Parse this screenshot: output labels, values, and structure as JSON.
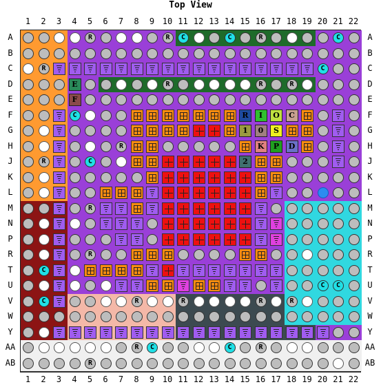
{
  "title": "Top View",
  "columns": [
    "1",
    "2",
    "3",
    "4",
    "5",
    "6",
    "7",
    "8",
    "9",
    "10",
    "11",
    "12",
    "13",
    "14",
    "15",
    "16",
    "17",
    "18",
    "19",
    "20",
    "21",
    "22"
  ],
  "rows": [
    "A",
    "B",
    "C",
    "D",
    "E",
    "F",
    "G",
    "H",
    "J",
    "K",
    "L",
    "M",
    "N",
    "P",
    "R",
    "T",
    "U",
    "V",
    "W",
    "Y",
    "AA",
    "AB"
  ],
  "legend_colors": {
    "grey_ball": "#bdbdbd",
    "white_ball": "#ffffff",
    "magenta_ball": "#e61ee6",
    "cyan_ball": "#20e0e6",
    "blue_ball": "#2b8cf0",
    "purple_square": "#a05cf0",
    "orange_square": "#ff8c10",
    "red_square": "#ee1010",
    "magenta_square": "#e040e0"
  },
  "region_colors": {
    "orange": "#ff9a30",
    "purple": "#9a3fd8",
    "green": "#1e6b2a",
    "darkred": "#8c1414",
    "cyan": "#30d8e0",
    "pink": "#f4b8a8",
    "slate": "#3c4a50",
    "white": "#f0f0f0"
  },
  "grid_map": [
    "ggwwRgwwgRCwgCgRgwggCg",
    "gggggggggggggggggggggg",
    "wRpppppppppppppppppCgg",
    "gggpggwgwRgwwwwRgRwggg",
    "gggpgggggggggggggggggg",
    "ggpCwggOOOOOOOOOOOOgpg",
    "gwpggggOOOOXXOOOOOOgpg",
    "gwpgwgROOgggggOOOOOgpg",
    "gRpgCgwOOXXXXXXOOgggpg",
    "gwpgggggOXXXXXXOOggggg",
    "gwpggOOOpXXXXXXOpggBgg",
    "ggpgRppOpXXXXXXpgggggg",
    "gwpwgpppgXXXXXXpMggggg",
    "gwpgggppgXXXXXXpMggggg",
    "gwpgRggOOOggggOOggwggg",
    "gCpwOOOOpXpppppppggggg",
    "gwpwgwppOOMOOppgpggCCg",
    "gCpggwwRwwRwwwwRwRwggg",
    "gggggggggggggggggggggg",
    "gwppppppppppppppppppgg",
    "gwwwwwgRCggwwCgRgwwggg",
    "ggggRgggggggggggggggwg"
  ],
  "ball_labels": {
    "R": "R",
    "C": "C"
  },
  "special_pins": [
    {
      "row": "D",
      "col": "4",
      "label": "E",
      "color": "#2a8a5a"
    },
    {
      "row": "E",
      "col": "4",
      "label": "F",
      "color": "#8a4a4a"
    },
    {
      "row": "F",
      "col": "15",
      "label": "R",
      "color": "#1e4aa0"
    },
    {
      "row": "F",
      "col": "16",
      "label": "I",
      "color": "#30c030"
    },
    {
      "row": "F",
      "col": "17",
      "label": "O",
      "color": "#c0e040"
    },
    {
      "row": "F",
      "col": "18",
      "label": "C",
      "color": "#c8a090"
    },
    {
      "row": "G",
      "col": "15",
      "label": "1",
      "color": "#9a9a40"
    },
    {
      "row": "G",
      "col": "16",
      "label": "0",
      "color": "#a08080"
    },
    {
      "row": "G",
      "col": "17",
      "label": "S",
      "color": "#f0f020"
    },
    {
      "row": "H",
      "col": "16",
      "label": "K",
      "color": "#e08080"
    },
    {
      "row": "H",
      "col": "17",
      "label": "P",
      "color": "#20a020"
    },
    {
      "row": "H",
      "col": "18",
      "label": "D",
      "color": "#6a70c8"
    },
    {
      "row": "J",
      "col": "15",
      "label": "2",
      "color": "#407070"
    }
  ]
}
